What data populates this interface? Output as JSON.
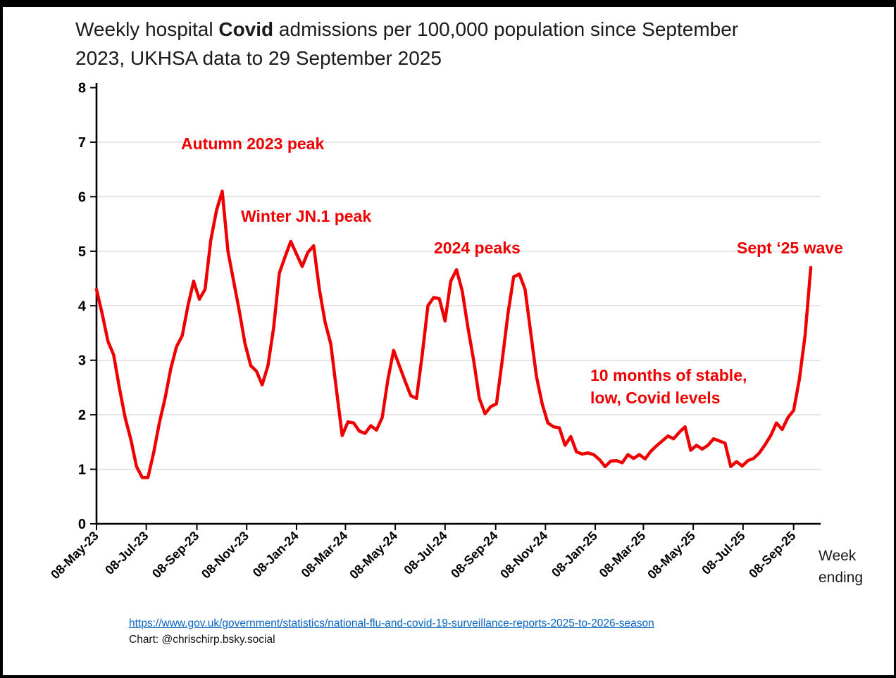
{
  "title": {
    "part1": "Weekly hospital ",
    "part2": "Covid",
    "part3": " admissions per 100,000 population since September",
    "line2": "2023, UKHSA data to 29 September 2025"
  },
  "annotations": {
    "autumn": "Autumn 2023 peak",
    "winter": "Winter JN.1 peak",
    "peaks_2024": "2024 peaks",
    "sept_25": "Sept ‘25 wave",
    "stable_line1": "10 months of stable,",
    "stable_line2": "low, Covid levels"
  },
  "footer": {
    "link": "https://www.gov.uk/government/statistics/national-flu-and-covid-19-surveillance-reports-2025-to-2026-season",
    "credit": "Chart: @chrischirp.bsky.social"
  },
  "colors": {
    "line": "#ee0000",
    "annotation": "#ee0000",
    "link": "#0563c1",
    "gridline": "#d9d9d9",
    "axis": "#000000",
    "background": "#ffffff"
  },
  "chart_data": {
    "type": "line",
    "title": "Weekly hospital Covid admissions per 100,000 population since September 2023, UKHSA data to 29 September 2025",
    "xlabel": "Week ending",
    "ylabel": "",
    "ylim": [
      0,
      8
    ],
    "y_ticks": [
      0,
      1,
      2,
      3,
      4,
      5,
      6,
      7,
      8
    ],
    "grid": "horizontal gridlines at 1-7",
    "legend": "none",
    "x_tick_labels": [
      "08-May-23",
      "08-Jul-23",
      "08-Sep-23",
      "08-Nov-23",
      "08-Jan-24",
      "08-Mar-24",
      "08-May-24",
      "08-Jul-24",
      "08-Sep-24",
      "08-Nov-24",
      "08-Jan-25",
      "08-Mar-25",
      "08-May-25",
      "08-Jul-25",
      "08-Sep-25"
    ],
    "x_tick_week_offsets": [
      0,
      8.714,
      17.571,
      26.286,
      35.0,
      43.571,
      52.286,
      61.0,
      69.857,
      78.571,
      87.286,
      95.714,
      104.429,
      113.143,
      122.0
    ],
    "series": [
      {
        "name": "Weekly hospital Covid admissions per 100,000 population",
        "interval": "weekly",
        "first_week_ending": "08-May-23",
        "last_week_ending": "29-Sep-25",
        "values": [
          4.3,
          3.85,
          3.35,
          3.1,
          2.5,
          1.95,
          1.55,
          1.05,
          0.85,
          0.85,
          1.3,
          1.85,
          2.3,
          2.85,
          3.25,
          3.45,
          4.0,
          4.45,
          4.12,
          4.3,
          5.2,
          5.75,
          6.1,
          5.0,
          4.45,
          3.9,
          3.3,
          2.9,
          2.8,
          2.55,
          2.9,
          3.6,
          4.6,
          4.9,
          5.18,
          4.95,
          4.72,
          4.98,
          5.1,
          4.3,
          3.7,
          3.3,
          2.45,
          1.62,
          1.87,
          1.85,
          1.7,
          1.66,
          1.8,
          1.72,
          1.95,
          2.65,
          3.18,
          2.9,
          2.62,
          2.35,
          2.3,
          3.1,
          4.0,
          4.15,
          4.13,
          3.72,
          4.45,
          4.66,
          4.27,
          3.6,
          3.0,
          2.3,
          2.02,
          2.15,
          2.2,
          3.0,
          3.85,
          4.53,
          4.58,
          4.3,
          3.5,
          2.7,
          2.2,
          1.85,
          1.78,
          1.76,
          1.44,
          1.6,
          1.32,
          1.28,
          1.3,
          1.27,
          1.18,
          1.05,
          1.15,
          1.16,
          1.12,
          1.27,
          1.2,
          1.27,
          1.19,
          1.33,
          1.43,
          1.52,
          1.61,
          1.56,
          1.68,
          1.78,
          1.35,
          1.44,
          1.37,
          1.44,
          1.56,
          1.52,
          1.48,
          1.05,
          1.14,
          1.06,
          1.16,
          1.2,
          1.3,
          1.45,
          1.62,
          1.85,
          1.73,
          1.95,
          2.08,
          2.65,
          3.45,
          4.7
        ]
      }
    ]
  }
}
